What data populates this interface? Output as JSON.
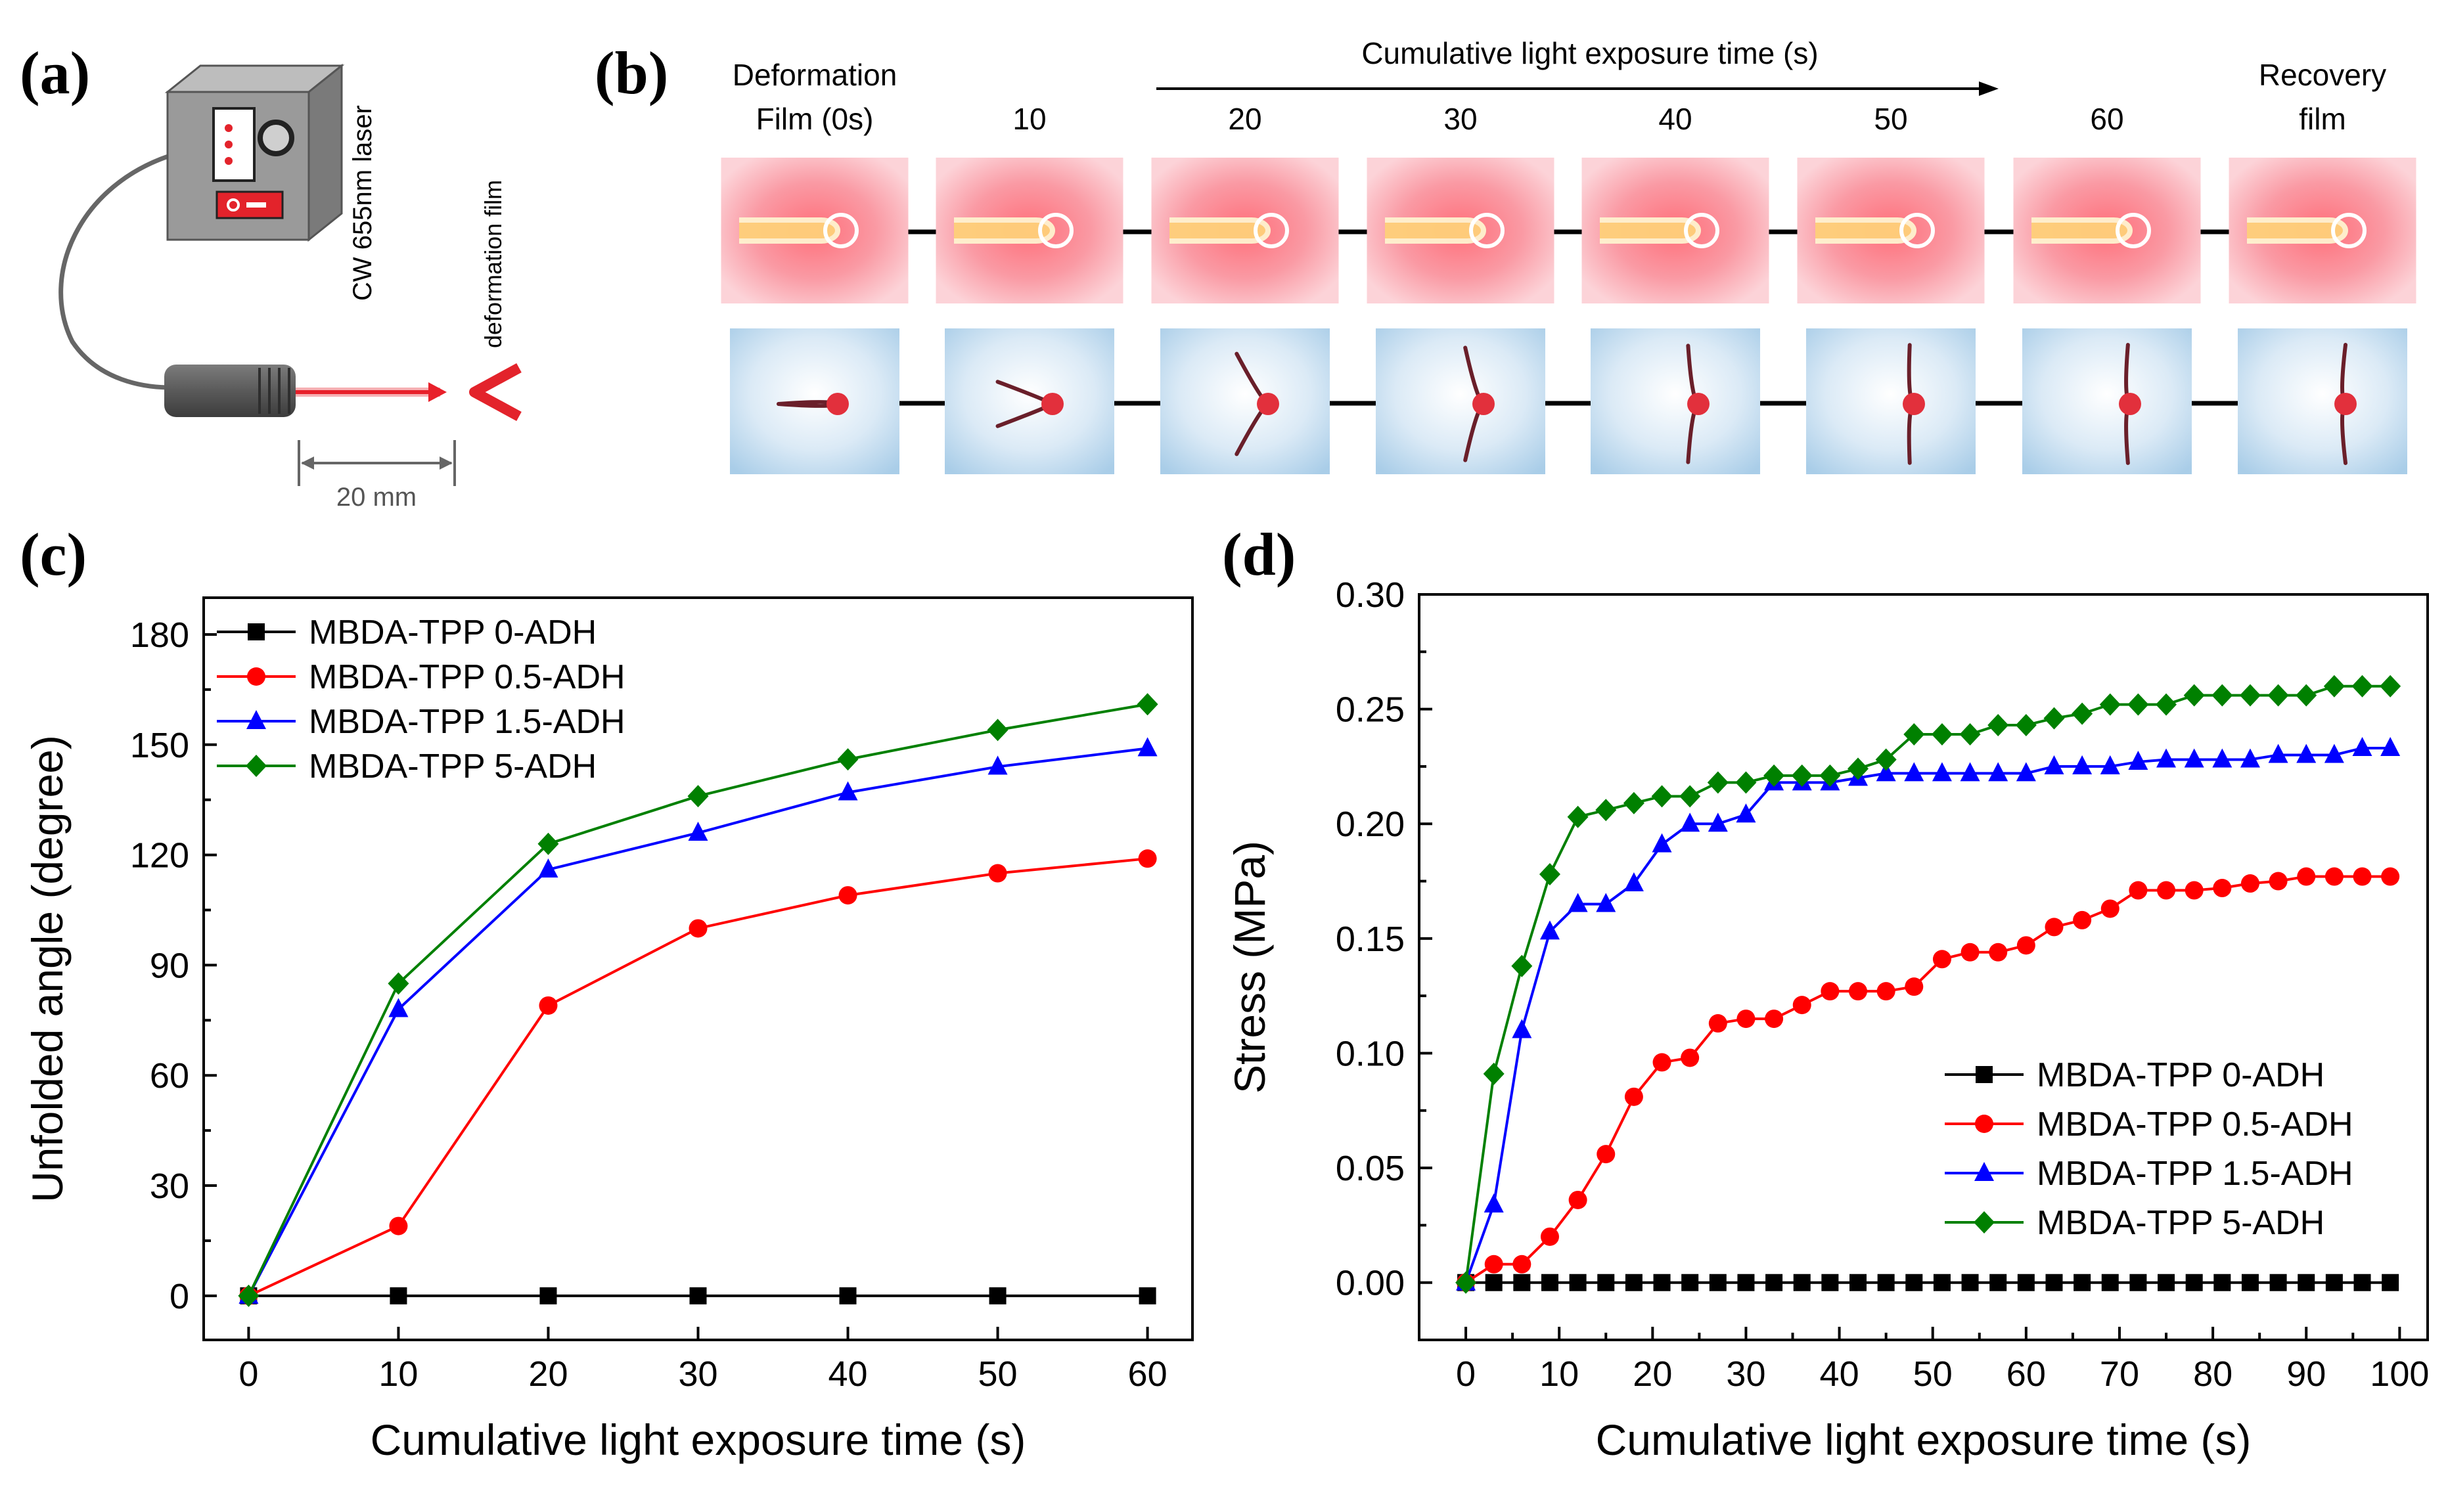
{
  "panels": {
    "a": "(a)",
    "b": "(b)",
    "c": "(c)",
    "d": "(d)"
  },
  "panel_a": {
    "laser_label": "CW 655nm laser",
    "film_label": "deformation film",
    "distance_label": "20 mm",
    "colors": {
      "beam": "#e8202a",
      "housing": "#8e8e8e"
    }
  },
  "panel_b": {
    "header": "Cumulative light exposure time (s)",
    "columns": [
      {
        "line1": "Deformation",
        "line2": "Film (0s)"
      },
      {
        "line1": "",
        "line2": "10"
      },
      {
        "line1": "",
        "line2": "20"
      },
      {
        "line1": "",
        "line2": "30"
      },
      {
        "line1": "",
        "line2": "40"
      },
      {
        "line1": "",
        "line2": "50"
      },
      {
        "line1": "",
        "line2": "60"
      },
      {
        "line1": "Recovery",
        "line2": "film"
      }
    ],
    "film_unfold_angle": [
      0,
      22,
      58,
      72,
      80,
      86,
      88,
      90
    ]
  },
  "chart_data": [
    {
      "id": "c",
      "type": "line",
      "title": "",
      "xlabel": "Cumulative light exposure time (s)",
      "ylabel": "Unfolded angle (degree)",
      "xlim": [
        -3,
        63
      ],
      "ylim": [
        -12,
        190
      ],
      "xticks": [
        0,
        10,
        20,
        30,
        40,
        50,
        60
      ],
      "yticks": [
        0,
        30,
        60,
        90,
        120,
        150,
        180
      ],
      "legend_position": "top-left",
      "x": [
        0,
        10,
        20,
        30,
        40,
        50,
        60
      ],
      "series": [
        {
          "name": "MBDA-TPP 0-ADH",
          "color": "#000000",
          "marker": "square",
          "values": [
            0,
            0,
            0,
            0,
            0,
            0,
            0
          ]
        },
        {
          "name": "MBDA-TPP 0.5-ADH",
          "color": "#ff0000",
          "marker": "circle",
          "values": [
            0,
            19,
            79,
            100,
            109,
            115,
            119
          ]
        },
        {
          "name": "MBDA-TPP 1.5-ADH",
          "color": "#0000ff",
          "marker": "triangle",
          "values": [
            0,
            78,
            116,
            126,
            137,
            144,
            149
          ]
        },
        {
          "name": "MBDA-TPP 5-ADH",
          "color": "#008000",
          "marker": "diamond",
          "values": [
            0,
            85,
            123,
            136,
            146,
            154,
            161
          ]
        }
      ]
    },
    {
      "id": "d",
      "type": "line",
      "title": "",
      "xlabel": "Cumulative light exposure time (s)",
      "ylabel": "Stress (MPa)",
      "xlim": [
        -5,
        103
      ],
      "ylim": [
        -0.025,
        0.3
      ],
      "xticks": [
        0,
        10,
        20,
        30,
        40,
        50,
        60,
        70,
        80,
        90,
        100
      ],
      "yticks": [
        0.0,
        0.05,
        0.1,
        0.15,
        0.2,
        0.25,
        0.3
      ],
      "ytick_labels": [
        "0.00",
        "0.05",
        "0.10",
        "0.15",
        "0.20",
        "0.25",
        "0.30"
      ],
      "legend_position": "bottom-right",
      "x": [
        0,
        3,
        6,
        9,
        12,
        15,
        18,
        21,
        24,
        27,
        30,
        33,
        36,
        39,
        42,
        45,
        48,
        51,
        54,
        57,
        60,
        63,
        66,
        69,
        72,
        75,
        78,
        81,
        84,
        87,
        90,
        93,
        96,
        99
      ],
      "series": [
        {
          "name": "MBDA-TPP 0-ADH",
          "color": "#000000",
          "marker": "square",
          "values": [
            0,
            0,
            0,
            0,
            0,
            0,
            0,
            0,
            0,
            0,
            0,
            0,
            0,
            0,
            0,
            0,
            0,
            0,
            0,
            0,
            0,
            0,
            0,
            0,
            0,
            0,
            0,
            0,
            0,
            0,
            0,
            0,
            0,
            0
          ]
        },
        {
          "name": "MBDA-TPP 0.5-ADH",
          "color": "#ff0000",
          "marker": "circle",
          "values": [
            0,
            0.008,
            0.008,
            0.02,
            0.036,
            0.056,
            0.081,
            0.096,
            0.098,
            0.113,
            0.115,
            0.115,
            0.121,
            0.127,
            0.127,
            0.127,
            0.129,
            0.141,
            0.144,
            0.144,
            0.147,
            0.155,
            0.158,
            0.163,
            0.171,
            0.171,
            0.171,
            0.172,
            0.174,
            0.175,
            0.177,
            0.177,
            0.177,
            0.177
          ]
        },
        {
          "name": "MBDA-TPP 1.5-ADH",
          "color": "#0000ff",
          "marker": "triangle",
          "values": [
            0,
            0.034,
            0.11,
            0.153,
            0.165,
            0.165,
            0.174,
            0.191,
            0.2,
            0.2,
            0.204,
            0.218,
            0.218,
            0.218,
            0.22,
            0.222,
            0.222,
            0.222,
            0.222,
            0.222,
            0.222,
            0.225,
            0.225,
            0.225,
            0.227,
            0.228,
            0.228,
            0.228,
            0.228,
            0.23,
            0.23,
            0.23,
            0.233,
            0.233
          ]
        },
        {
          "name": "MBDA-TPP 5-ADH",
          "color": "#008000",
          "marker": "diamond",
          "values": [
            0,
            0.091,
            0.138,
            0.178,
            0.203,
            0.206,
            0.209,
            0.212,
            0.212,
            0.218,
            0.218,
            0.221,
            0.221,
            0.221,
            0.224,
            0.228,
            0.239,
            0.239,
            0.239,
            0.243,
            0.243,
            0.246,
            0.248,
            0.252,
            0.252,
            0.252,
            0.256,
            0.256,
            0.256,
            0.256,
            0.256,
            0.26,
            0.26,
            0.26
          ]
        }
      ]
    }
  ]
}
